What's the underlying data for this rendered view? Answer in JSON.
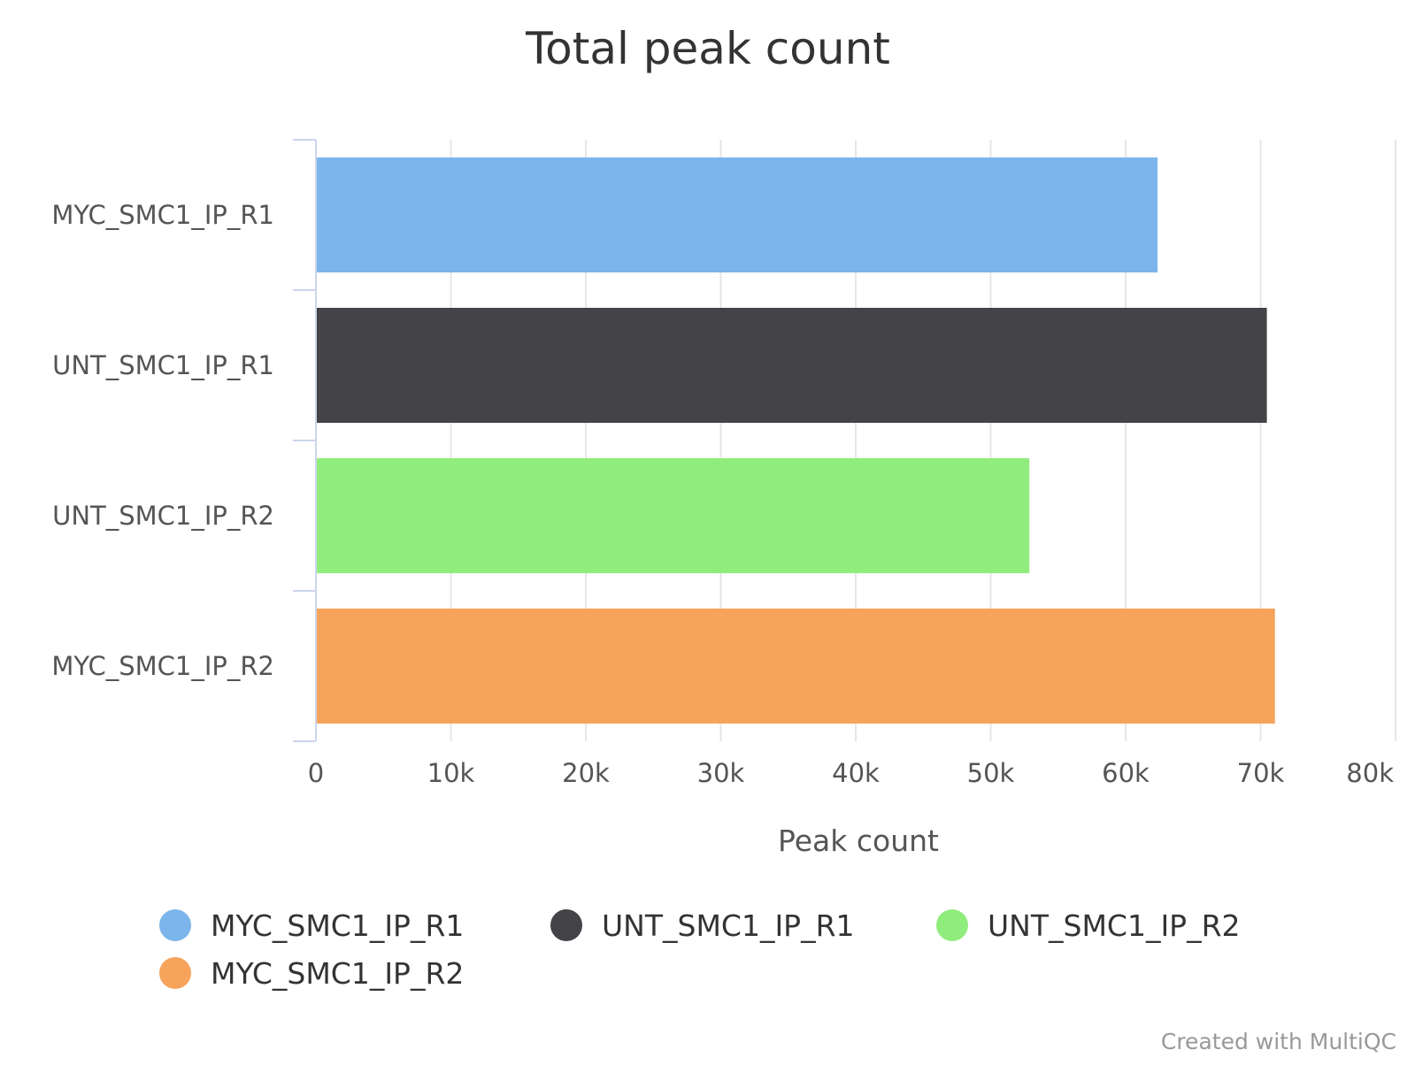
{
  "chart_data": {
    "type": "bar",
    "orientation": "horizontal",
    "title": "Total peak count",
    "xlabel": "Peak count",
    "ylabel": "",
    "xlim": [
      0,
      80000
    ],
    "x_ticks": [
      0,
      10000,
      20000,
      30000,
      40000,
      50000,
      60000,
      70000,
      80000
    ],
    "x_tick_labels": [
      "0",
      "10k",
      "20k",
      "30k",
      "40k",
      "50k",
      "60k",
      "70k",
      "80k"
    ],
    "categories": [
      "MYC_SMC1_IP_R1",
      "UNT_SMC1_IP_R1",
      "UNT_SMC1_IP_R2",
      "MYC_SMC1_IP_R2"
    ],
    "values": [
      62300,
      70400,
      52800,
      71000
    ],
    "colors": [
      "#7cb5ec",
      "#434348",
      "#90ed7d",
      "#f7a35c"
    ],
    "grid": true,
    "legend": {
      "position": "bottom",
      "entries": [
        "MYC_SMC1_IP_R1",
        "UNT_SMC1_IP_R1",
        "UNT_SMC1_IP_R2",
        "MYC_SMC1_IP_R2"
      ]
    },
    "credit": "Created with MultiQC"
  }
}
